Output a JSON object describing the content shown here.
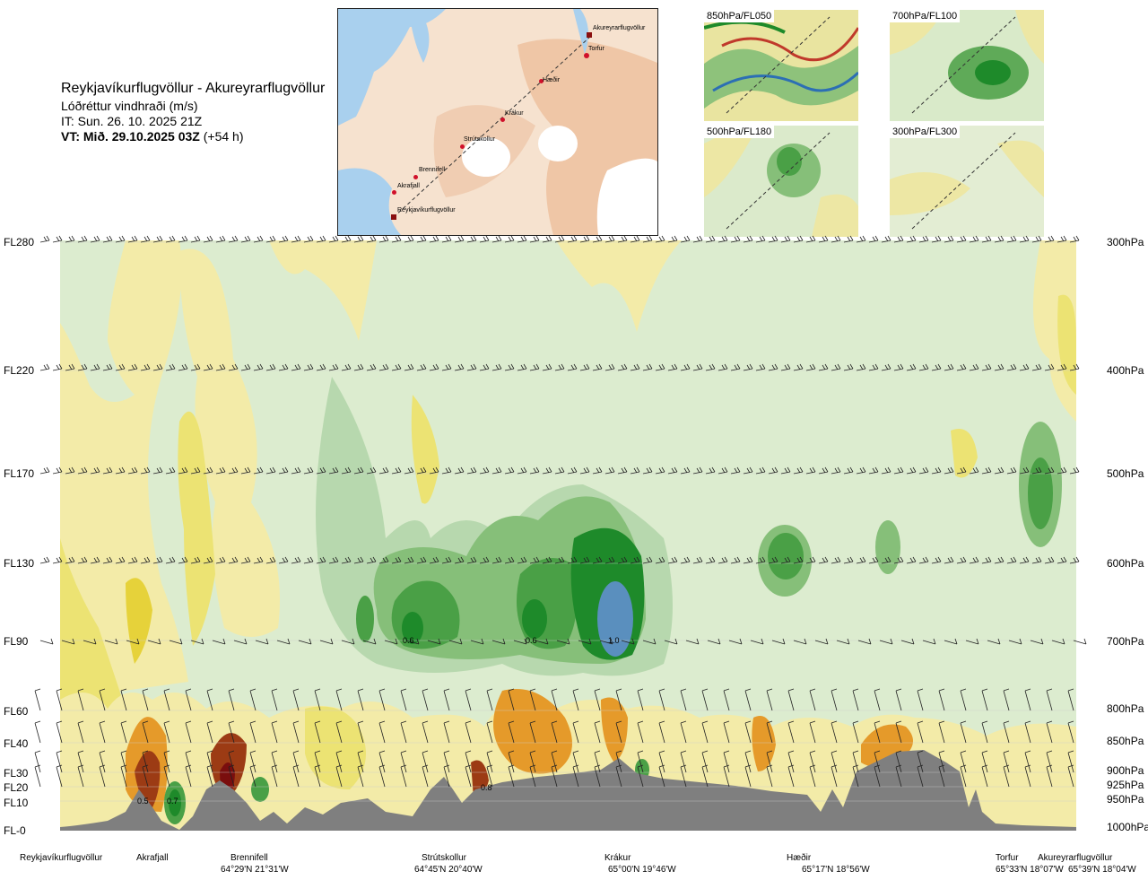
{
  "header": {
    "title": "Reykjavíkurflugvöllur - Akureyrarflugvöllur",
    "subtitle": "Lóðréttur vindhraði (m/s)",
    "issue_time": "IT: Sun. 26. 10. 2025 21Z",
    "valid_time_bold": "VT: Mið. 29.10.2025 03Z",
    "valid_time_offset": "(+54 h)"
  },
  "route_map": {
    "waypoints": [
      {
        "name": "Akureyrarflugvöllur"
      },
      {
        "name": "Torfur"
      },
      {
        "name": "Hæðir"
      },
      {
        "name": "Krákur"
      },
      {
        "name": "Strútskollur"
      },
      {
        "name": "Brennifell"
      },
      {
        "name": "Akrafjall"
      },
      {
        "name": "Reykjavíkurflugvöllur"
      }
    ]
  },
  "mini_maps": [
    {
      "label": "850hPa/FL050"
    },
    {
      "label": "700hPa/FL100"
    },
    {
      "label": "500hPa/FL180"
    },
    {
      "label": "300hPa/FL300"
    }
  ],
  "levels": [
    {
      "fl": "FL280",
      "hpa": "300hPa"
    },
    {
      "fl": "FL220",
      "hpa": "400hPa"
    },
    {
      "fl": "FL170",
      "hpa": "500hPa"
    },
    {
      "fl": "FL130",
      "hpa": "600hPa"
    },
    {
      "fl": "FL90",
      "hpa": "700hPa"
    },
    {
      "fl": "FL60",
      "hpa": "800hPa"
    },
    {
      "fl": "FL40",
      "hpa": "850hPa"
    },
    {
      "fl": "FL30",
      "hpa": "900hPa"
    },
    {
      "fl": "FL20",
      "hpa": "925hPa"
    },
    {
      "fl": "FL10",
      "hpa": "950hPa"
    },
    {
      "fl": "FL-0",
      "hpa": "1000hPa"
    }
  ],
  "contour_labels": [
    "0.6",
    "0.6",
    "1.0",
    "0.5",
    "0.7",
    "0.8"
  ],
  "colors": {
    "yellow_light": "#f3eba8",
    "yellow": "#ece373",
    "yellow_strong": "#e6d23a",
    "orange": "#e59a2a",
    "brown": "#9c3b14",
    "dark_red": "#7a0e0e",
    "green_pale": "#dceccf",
    "green_light": "#b7d8ae",
    "green_mid": "#86bf79",
    "green": "#4aa046",
    "green_dark": "#1e8a2a",
    "blue": "#5a8fbe",
    "terrain": "#7f7f7f"
  },
  "bottom_labels": {
    "names": [
      "Reykjavíkurflugvöllur",
      "Akrafjall",
      "Brennifell",
      "Strútskollur",
      "Krákur",
      "Hæðir",
      "Torfur",
      "Akureyrarflugvöllur"
    ],
    "coords": [
      "64°29'N 21°31'W",
      "64°45'N 20°40'W",
      "65°00'N 19°46'W",
      "65°17'N 18°56'W",
      "65°33'N 18°07'W",
      "65°39'N 18°04'W"
    ]
  }
}
